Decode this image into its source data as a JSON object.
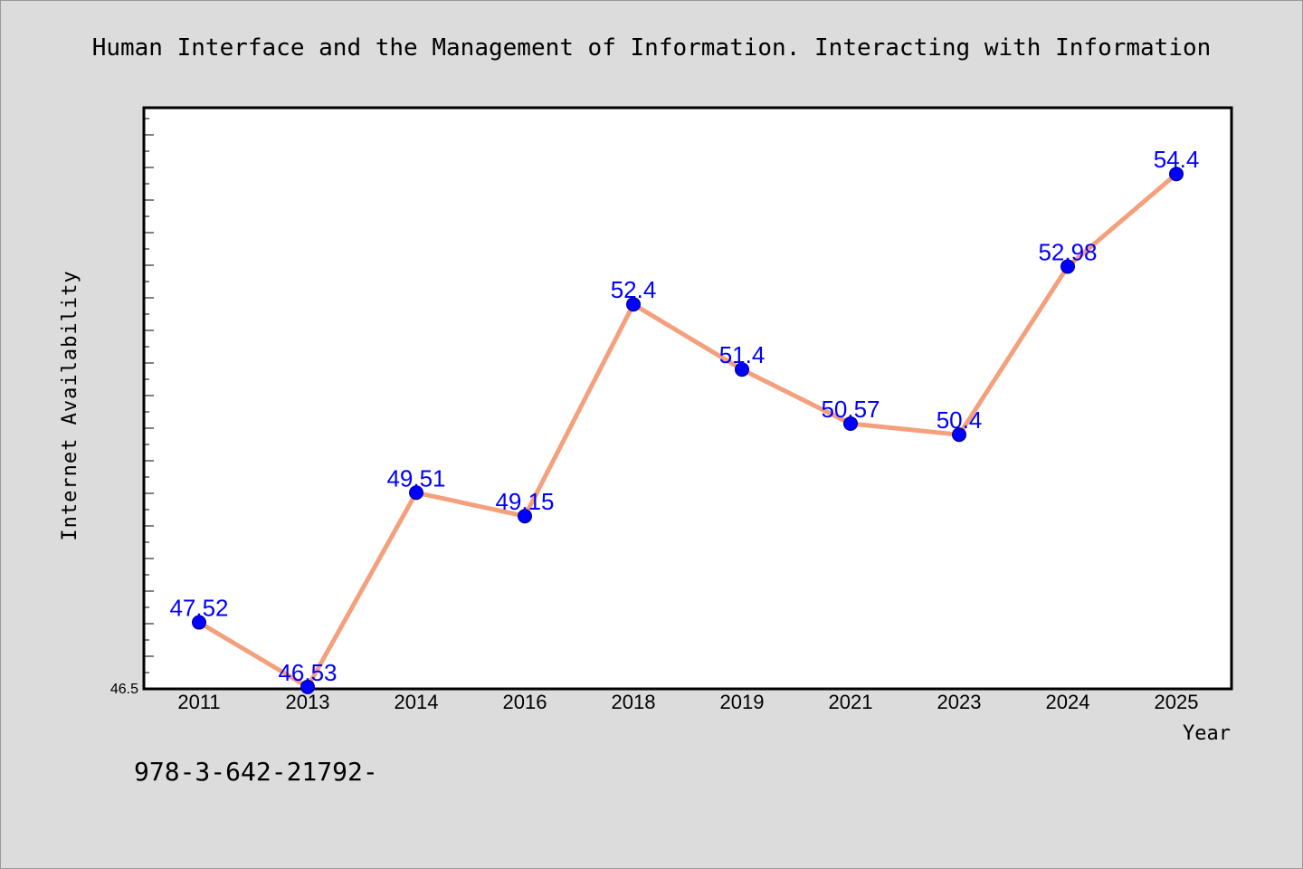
{
  "chart_data": {
    "type": "line",
    "title": "Human Interface and the Management of Information. Interacting with Information",
    "xlabel": "Year",
    "ylabel": "Internet Availability",
    "categories": [
      "2011",
      "2013",
      "2014",
      "2016",
      "2018",
      "2019",
      "2021",
      "2023",
      "2024",
      "2025"
    ],
    "series": [
      {
        "values": [
          47.52,
          46.53,
          49.51,
          49.15,
          52.4,
          51.4,
          50.57,
          50.4,
          52.98,
          54.4
        ],
        "data_labels": [
          "47.52",
          "46.53",
          "49.51",
          "49.15",
          "52.4",
          "51.4",
          "50.57",
          "50.4",
          "52.98",
          "54.4"
        ],
        "line_color": "#f4a07c",
        "marker_color": "#0000ff"
      }
    ],
    "ylim": [
      46.5,
      55.5
    ],
    "y_tick_label": "46.5",
    "grid": false,
    "legend": "none"
  },
  "footnote": "978-3-642-21792-",
  "colors": {
    "background": "#dcdcdc",
    "plot_background": "#ffffff",
    "line": "#f4a07c",
    "marker": "#0000ff",
    "data_label": "#0000ff"
  }
}
